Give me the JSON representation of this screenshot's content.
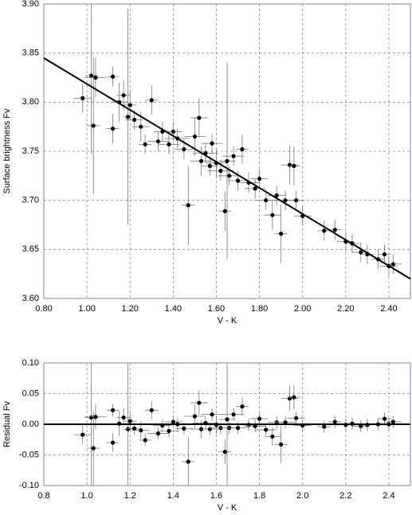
{
  "chart_data": [
    {
      "type": "scatter",
      "x_label": "V - K",
      "y_label": "Surface brightness Fv",
      "color": "#000000",
      "grid": true,
      "xlim": [
        0.8,
        2.5
      ],
      "ylim": [
        3.6,
        3.9
      ],
      "xticks": [
        {
          "value": 0.8,
          "label": "0.80"
        },
        {
          "value": 1,
          "label": "1.00"
        },
        {
          "value": 1.2,
          "label": "1.20"
        },
        {
          "value": 1.4,
          "label": "1.40"
        },
        {
          "value": 1.6,
          "label": "1.60"
        },
        {
          "value": 1.8,
          "label": "1.80"
        },
        {
          "value": 2,
          "label": "2.00"
        },
        {
          "value": 2.2,
          "label": "2.20"
        },
        {
          "value": 2.4,
          "label": "2.40"
        }
      ],
      "yticks": [
        {
          "value": 3.6,
          "label": "3.60"
        },
        {
          "value": 3.65,
          "label": "3.65"
        },
        {
          "value": 3.7,
          "label": "3.70"
        },
        {
          "value": 3.75,
          "label": "3.75"
        },
        {
          "value": 3.8,
          "label": "3.80"
        },
        {
          "value": 3.85,
          "label": "3.85"
        },
        {
          "value": 3.9,
          "label": "3.90"
        }
      ],
      "x": [
        0.98,
        1.02,
        1.03,
        1.04,
        1.12,
        1.12,
        1.15,
        1.17,
        1.19,
        1.2,
        1.22,
        1.25,
        1.27,
        1.3,
        1.33,
        1.35,
        1.38,
        1.4,
        1.42,
        1.45,
        1.47,
        1.5,
        1.52,
        1.53,
        1.55,
        1.57,
        1.58,
        1.6,
        1.62,
        1.64,
        1.65,
        1.66,
        1.68,
        1.7,
        1.72,
        1.75,
        1.78,
        1.8,
        1.83,
        1.86,
        1.88,
        1.9,
        1.92,
        1.94,
        1.96,
        1.97,
        2.0,
        2.1,
        2.15,
        2.2,
        2.23,
        2.27,
        2.3,
        2.35,
        2.38,
        2.4,
        2.42
      ],
      "values": [
        3.804,
        3.827,
        3.776,
        3.825,
        3.826,
        3.773,
        3.8,
        3.807,
        3.785,
        3.797,
        3.782,
        3.775,
        3.757,
        3.802,
        3.76,
        3.77,
        3.757,
        3.77,
        3.763,
        3.752,
        3.695,
        3.765,
        3.784,
        3.74,
        3.748,
        3.735,
        3.758,
        3.738,
        3.73,
        3.689,
        3.74,
        3.725,
        3.745,
        3.72,
        3.752,
        3.718,
        3.712,
        3.722,
        3.7,
        3.685,
        3.705,
        3.666,
        3.7,
        3.736,
        3.735,
        3.7,
        3.684,
        3.669,
        3.67,
        3.658,
        3.656,
        3.647,
        3.645,
        3.64,
        3.645,
        3.633,
        3.635
      ],
      "xerr": [
        0.04,
        0.03,
        0.03,
        0.05,
        0.03,
        0.03,
        0.04,
        0.03,
        0.02,
        0.03,
        0.04,
        0.04,
        0.03,
        0.03,
        0.05,
        0.04,
        0.05,
        0.04,
        0.06,
        0.04,
        0.03,
        0.05,
        0.04,
        0.05,
        0.06,
        0.04,
        0.05,
        0.05,
        0.06,
        0.03,
        0.04,
        0.05,
        0.05,
        0.05,
        0.03,
        0.05,
        0.05,
        0.04,
        0.05,
        0.04,
        0.04,
        0.03,
        0.05,
        0.04,
        0.03,
        0.04,
        0.04,
        0.03,
        0.03,
        0.04,
        0.03,
        0.04,
        0.03,
        0.03,
        0.03,
        0.04,
        0.04
      ],
      "yerr": [
        0.015,
        0.08,
        0.07,
        0.02,
        0.01,
        0.015,
        0.02,
        0.015,
        0.11,
        0.015,
        0.01,
        0.015,
        0.01,
        0.015,
        0.01,
        0.01,
        0.01,
        0.01,
        0.01,
        0.01,
        0.04,
        0.02,
        0.02,
        0.015,
        0.01,
        0.01,
        0.01,
        0.015,
        0.01,
        0.02,
        0.1,
        0.01,
        0.01,
        0.01,
        0.015,
        0.01,
        0.01,
        0.01,
        0.01,
        0.015,
        0.01,
        0.03,
        0.01,
        0.02,
        0.02,
        0.01,
        0.01,
        0.01,
        0.01,
        0.01,
        0.01,
        0.01,
        0.01,
        0.01,
        0.01,
        0.01,
        0.01
      ],
      "fit": {
        "x": [
          0.8,
          2.5
        ],
        "y": [
          3.845,
          3.62
        ]
      }
    },
    {
      "type": "scatter",
      "x_label": "V - K",
      "y_label": "Residual Fv",
      "color": "#000000",
      "grid": true,
      "xlim": [
        0.8,
        2.5
      ],
      "ylim": [
        -0.1,
        0.1
      ],
      "xticks": [
        0.8,
        {
          "value": 1,
          "label": "1.0"
        },
        1.2,
        1.4,
        1.6,
        1.8,
        {
          "value": 2,
          "label": "2.0"
        },
        2.2,
        2.4
      ],
      "yticks": [
        {
          "value": -0.1,
          "label": "-0.10"
        },
        {
          "value": -0.05,
          "label": "-0.05"
        },
        {
          "value": 0,
          "label": "0.00"
        },
        {
          "value": 0.05,
          "label": "0.05"
        },
        {
          "value": 0.1,
          "label": "0.10"
        }
      ],
      "x": [
        0.98,
        1.02,
        1.03,
        1.04,
        1.12,
        1.12,
        1.15,
        1.17,
        1.19,
        1.2,
        1.22,
        1.25,
        1.27,
        1.3,
        1.33,
        1.35,
        1.38,
        1.4,
        1.42,
        1.45,
        1.47,
        1.5,
        1.52,
        1.53,
        1.55,
        1.57,
        1.58,
        1.6,
        1.62,
        1.64,
        1.65,
        1.66,
        1.68,
        1.7,
        1.72,
        1.75,
        1.78,
        1.8,
        1.83,
        1.86,
        1.88,
        1.9,
        1.92,
        1.94,
        1.96,
        1.97,
        2.0,
        2.1,
        2.15,
        2.2,
        2.23,
        2.27,
        2.3,
        2.35,
        2.38,
        2.4,
        2.42
      ],
      "values": [
        -0.017,
        0.011,
        -0.039,
        0.012,
        0.023,
        -0.03,
        0.001,
        0.011,
        -0.008,
        0.005,
        -0.007,
        -0.01,
        -0.026,
        0.023,
        -0.015,
        -0.002,
        -0.011,
        0.004,
        0,
        -0.007,
        -0.061,
        0.013,
        0.035,
        -0.008,
        0.002,
        -0.008,
        0.016,
        -0.001,
        -0.006,
        -0.045,
        0.008,
        -0.006,
        0.016,
        -0.006,
        0.029,
        -0.001,
        -0.003,
        0.009,
        -0.009,
        -0.02,
        0.003,
        -0.033,
        0.003,
        0.042,
        0.044,
        0.01,
        -0.002,
        -0.004,
        0.004,
        -0.001,
        0.001,
        -0.003,
        -0.001,
        0,
        0.009,
        0,
        0.004
      ],
      "xerr": [
        0.04,
        0.03,
        0.03,
        0.05,
        0.03,
        0.03,
        0.04,
        0.03,
        0.02,
        0.03,
        0.04,
        0.04,
        0.03,
        0.03,
        0.05,
        0.04,
        0.05,
        0.04,
        0.06,
        0.04,
        0.03,
        0.05,
        0.04,
        0.05,
        0.06,
        0.04,
        0.05,
        0.05,
        0.06,
        0.03,
        0.04,
        0.05,
        0.05,
        0.05,
        0.03,
        0.05,
        0.05,
        0.04,
        0.05,
        0.04,
        0.04,
        0.03,
        0.05,
        0.04,
        0.03,
        0.04,
        0.04,
        0.03,
        0.03,
        0.04,
        0.03,
        0.04,
        0.03,
        0.03,
        0.03,
        0.04,
        0.04
      ],
      "yerr": [
        0.015,
        0.11,
        0.06,
        0.02,
        0.01,
        0.015,
        0.02,
        0.015,
        0.11,
        0.015,
        0.01,
        0.015,
        0.01,
        0.015,
        0.01,
        0.01,
        0.01,
        0.01,
        0.01,
        0.01,
        0.04,
        0.02,
        0.02,
        0.015,
        0.01,
        0.01,
        0.01,
        0.015,
        0.01,
        0.02,
        0.11,
        0.01,
        0.01,
        0.01,
        0.015,
        0.01,
        0.01,
        0.01,
        0.01,
        0.015,
        0.01,
        0.03,
        0.01,
        0.02,
        0.02,
        0.01,
        0.01,
        0.01,
        0.01,
        0.01,
        0.01,
        0.01,
        0.01,
        0.01,
        0.01,
        0.01,
        0.01
      ],
      "fit": {
        "x": [
          0.8,
          2.5
        ],
        "y": [
          0,
          0
        ]
      }
    }
  ]
}
